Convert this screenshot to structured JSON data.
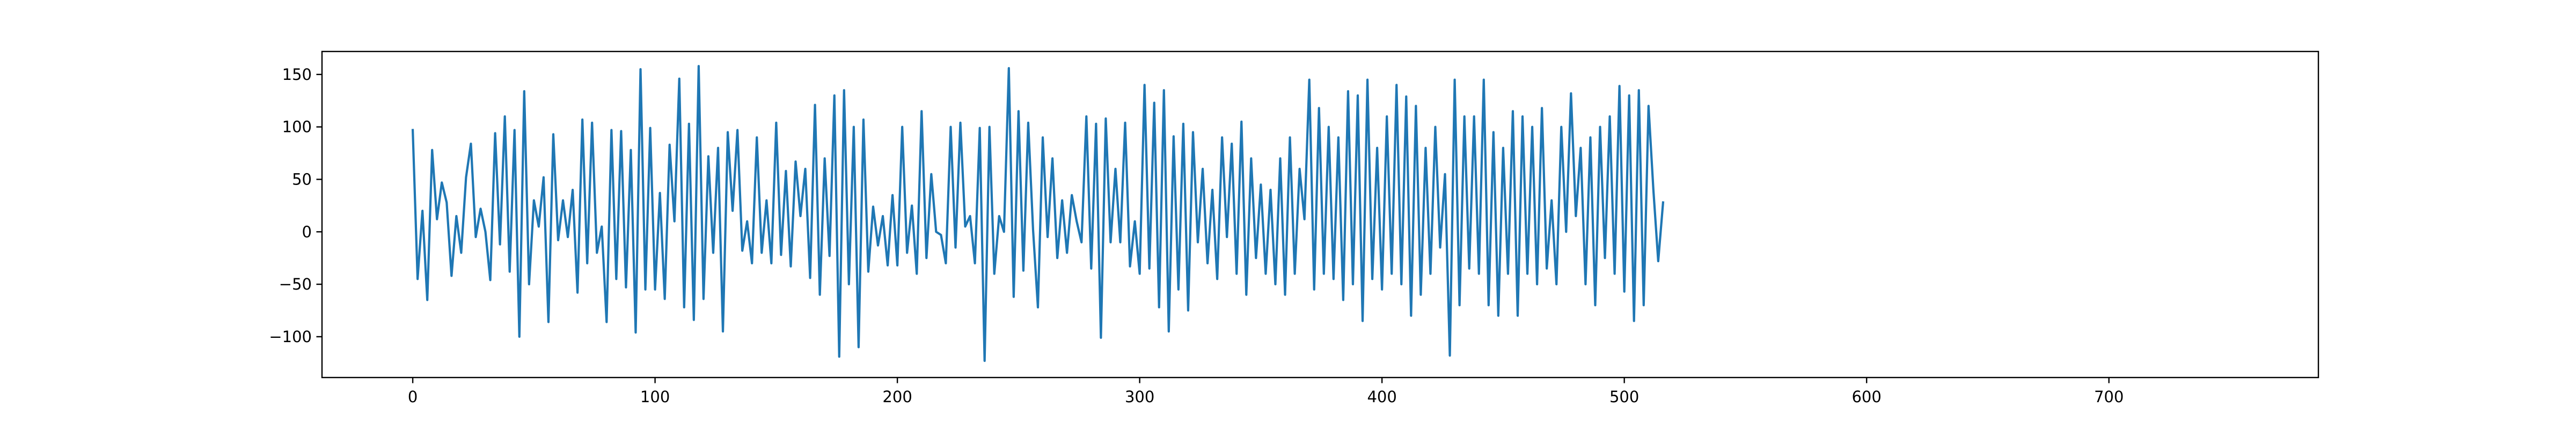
{
  "chart_data": {
    "type": "line",
    "title": "",
    "xlabel": "",
    "ylabel": "",
    "xlim": [
      -37.45,
      786.45
    ],
    "ylim": [
      -138.9,
      171.9
    ],
    "xticks": [
      0,
      100,
      200,
      300,
      400,
      500,
      600,
      700
    ],
    "yticks": [
      -100,
      -50,
      0,
      50,
      100,
      150
    ],
    "xtick_labels": [
      "0",
      "100",
      "200",
      "300",
      "400",
      "500",
      "600",
      "700"
    ],
    "ytick_labels": [
      "−100",
      "−50",
      "0",
      "50",
      "100",
      "150"
    ],
    "grid": false,
    "legend": "none",
    "line_color": "#1f77b4",
    "series": [
      {
        "x_start": 0,
        "x_step": 2,
        "values": [
          97,
          -45,
          20,
          -65,
          78,
          12,
          47,
          28,
          -42,
          15,
          -20,
          52,
          84,
          -5,
          22,
          0,
          -46,
          94,
          -12,
          110,
          -38,
          97,
          -100,
          134,
          -50,
          30,
          5,
          52,
          -86,
          93,
          -8,
          30,
          -5,
          40,
          -58,
          107,
          -30,
          104,
          -20,
          5,
          -86,
          97,
          -45,
          96,
          -53,
          78,
          -96,
          155,
          -55,
          99,
          -55,
          37,
          -64,
          83,
          10,
          146,
          -72,
          103,
          -84,
          158,
          -64,
          72,
          -20,
          80,
          -95,
          95,
          20,
          97,
          -18,
          10,
          -30,
          90,
          -20,
          30,
          -30,
          104,
          -22,
          58,
          -33,
          67,
          15,
          60,
          -44,
          121,
          -60,
          70,
          -23,
          130,
          -119,
          135,
          -50,
          100,
          -110,
          107,
          -38,
          24,
          -13,
          15,
          -32,
          35,
          -32,
          100,
          -20,
          25,
          -40,
          115,
          -25,
          55,
          0,
          -3,
          -30,
          100,
          -15,
          104,
          5,
          15,
          -30,
          99,
          -123,
          100,
          -40,
          15,
          0,
          156,
          -62,
          115,
          -37,
          104,
          2,
          -72,
          90,
          -5,
          70,
          -25,
          30,
          -20,
          35,
          10,
          -10,
          110,
          -35,
          103,
          -101,
          108,
          -10,
          60,
          -10,
          104,
          -33,
          10,
          -40,
          140,
          -35,
          123,
          -72,
          135,
          -95,
          91,
          -55,
          103,
          -75,
          95,
          -10,
          60,
          -30,
          40,
          -45,
          90,
          -5,
          84,
          -40,
          105,
          -60,
          70,
          -25,
          45,
          -40,
          40,
          -50,
          70,
          -60,
          90,
          -40,
          60,
          12,
          145,
          -55,
          118,
          -40,
          100,
          -45,
          90,
          -65,
          134,
          -50,
          130,
          -85,
          145,
          -45,
          80,
          -55,
          110,
          -40,
          140,
          -50,
          129,
          -80,
          120,
          -60,
          80,
          -40,
          100,
          -15,
          55,
          -118,
          145,
          -70,
          110,
          -35,
          110,
          -40,
          145,
          -70,
          95,
          -80,
          80,
          -40,
          115,
          -80,
          110,
          -40,
          100,
          -50,
          118,
          -35,
          30,
          -50,
          100,
          0,
          132,
          15,
          80,
          -50,
          90,
          -70,
          100,
          -25,
          110,
          -40,
          139,
          -57,
          130,
          -85,
          135,
          -70,
          120,
          40,
          -28,
          28
        ]
      }
    ]
  }
}
